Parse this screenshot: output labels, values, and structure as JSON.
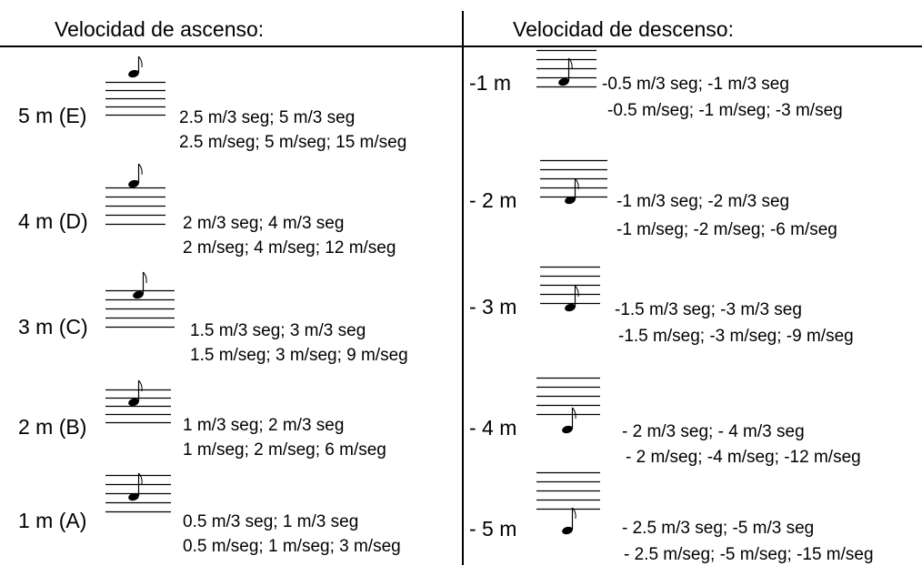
{
  "colors": {
    "ink": "#000000",
    "background": "#ffffff"
  },
  "icons": {
    "staff_note": "eighth-note-on-staff-icon"
  },
  "ascent": {
    "header": "Velocidad de ascenso:",
    "rows": [
      {
        "label": "5 m (E)",
        "line1": "2.5 m/3 seg; 5 m/3 seg",
        "line2": "2.5 m/seg; 5 m/seg; 15 m/seg"
      },
      {
        "label": "4 m (D)",
        "line1": "2 m/3 seg; 4 m/3 seg",
        "line2": "2 m/seg; 4 m/seg; 12 m/seg"
      },
      {
        "label": "3 m (C)",
        "line1": "1.5 m/3 seg; 3 m/3 seg",
        "line2": "1.5 m/seg; 3 m/seg; 9 m/seg"
      },
      {
        "label": "2 m (B)",
        "line1": "1 m/3 seg; 2 m/3 seg",
        "line2": "1 m/seg; 2 m/seg; 6 m/seg"
      },
      {
        "label": "1 m (A)",
        "line1": "0.5 m/3 seg; 1 m/3 seg",
        "line2": "0.5 m/seg; 1 m/seg; 3 m/seg"
      }
    ]
  },
  "descent": {
    "header": "Velocidad de descenso:",
    "rows": [
      {
        "label": "-1 m",
        "line1": "-0.5 m/3 seg; -1 m/3 seg",
        "line2": "-0.5 m/seg; -1 m/seg; -3 m/seg"
      },
      {
        "label": "- 2 m",
        "line1": "-1 m/3 seg; -2 m/3 seg",
        "line2": "-1 m/seg; -2 m/seg; -6 m/seg"
      },
      {
        "label": "- 3 m",
        "line1": "-1.5 m/3 seg; -3 m/3 seg",
        "line2": "-1.5 m/seg; -3 m/seg; -9 m/seg"
      },
      {
        "label": "- 4 m",
        "line1": "- 2 m/3 seg; - 4 m/3 seg",
        "line2": "- 2 m/seg; -4 m/seg; -12 m/seg"
      },
      {
        "label": "- 5 m",
        "line1": "- 2.5 m/3 seg; -5 m/3 seg",
        "line2": "- 2.5 m/seg; -5 m/seg; -15 m/seg"
      }
    ]
  }
}
